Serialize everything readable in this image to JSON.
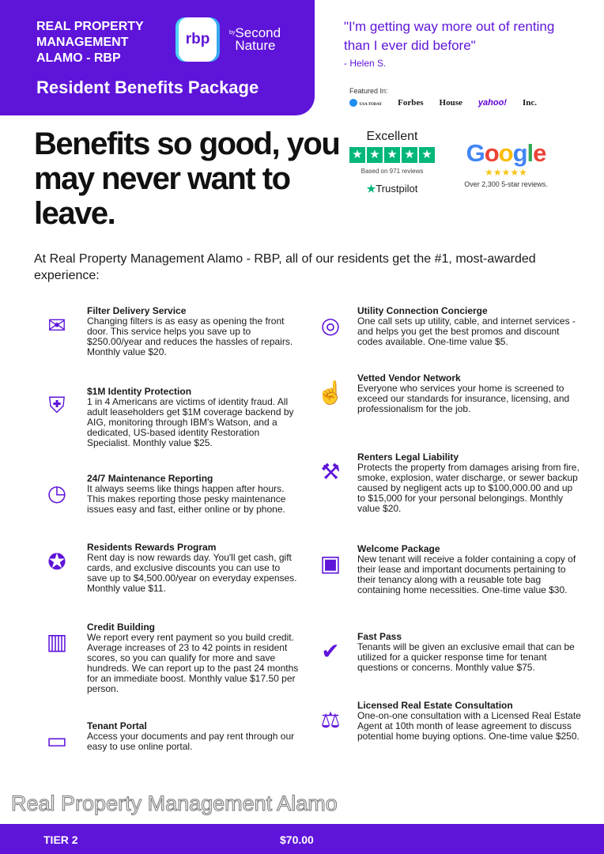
{
  "header": {
    "brand": "REAL PROPERTY MANAGEMENT ALAMO - RBP",
    "logo_text": "rbp",
    "logo_by": "by",
    "logo_sub": "Second Nature",
    "title": "Resident Benefits Package"
  },
  "quote": {
    "text": "\"I'm getting way more out of renting than I ever did before\"",
    "author": "- Helen S."
  },
  "featured": {
    "label": "Featured In:",
    "outlets": [
      "USA TODAY",
      "Forbes",
      "House",
      "yahoo!",
      "Inc."
    ]
  },
  "trustpilot": {
    "rating": "Excellent",
    "based": "Based on 971 reviews",
    "brand": "Trustpilot"
  },
  "google": {
    "brand": "Google",
    "stars": "★★★★★",
    "reviews": "Over 2,300 5-star reviews."
  },
  "headline": "Benefits so good, you may never want to leave.",
  "intro": "At Real Property Management Alamo - RBP, all of our residents get the #1, most-awarded experience:",
  "left": [
    {
      "title": "Filter Delivery Service",
      "body": "Changing filters is as easy as opening the front door. This service helps you save up to $250.00/year and reduces the hassles of repairs. Monthly value $20."
    },
    {
      "title": "$1M Identity Protection",
      "body": "1 in 4 Americans are victims of identity fraud. All adult leaseholders get $1M coverage backend by AIG, monitoring through IBM's Watson, and a dedicated, US-based identity Restoration Specialist. Monthly value $25."
    },
    {
      "title": "24/7 Maintenance Reporting",
      "body": "It always seems like things happen after hours. This makes reporting those pesky maintenance issues easy and fast, either online or by phone."
    },
    {
      "title": "Residents Rewards Program",
      "body": "Rent day is now rewards day. You'll get cash, gift cards, and exclusive discounts you can use to save up to $4,500.00/year on everyday expenses. Monthly value $11."
    },
    {
      "title": "Credit Building",
      "body": "We report every rent payment so you build credit. Average increases of 23 to 42 points in resident scores, so you can qualify for more and save hundreds. We can report up to the past 24 months for an immediate boost. Monthly value $17.50 per person."
    },
    {
      "title": "Tenant Portal",
      "body": "Access your documents and pay rent through our easy to use online portal."
    }
  ],
  "right": [
    {
      "title": "Utility Connection Concierge",
      "body": "One call sets up utility, cable, and internet services - and helps you get the best promos and discount codes available. One-time value $5."
    },
    {
      "title": "Vetted Vendor Network",
      "body": "Everyone who services your home is screened to exceed our standards for insurance, licensing, and professionalism for the job."
    },
    {
      "title": "Renters Legal Liability",
      "body": "Protects the property from damages arising from fire, smoke, explosion, water discharge, or sewer backup caused by negligent acts up to $100,000.00 and up to $15,000 for your personal belongings. Monthly value $20."
    },
    {
      "title": "Welcome Package",
      "body": "New tenant will receive a folder containing a copy of their lease and important documents pertaining to their tenancy along with a reusable tote bag containing home necessities. One-time value $30."
    },
    {
      "title": "Fast Pass",
      "body": "Tenants will be given an exclusive email that can be utilized for a quicker response time for tenant questions or concerns. Monthly value $75."
    },
    {
      "title": "Licensed Real Estate Consultation",
      "body": "One-on-one consultation with a Licensed Real Estate Agent at 10th month of lease agreement to discuss potential home buying options. One-time value $250."
    }
  ],
  "footer": {
    "tier": "TIER 2",
    "price": "$70.00"
  },
  "watermark": "Real Property Management Alamo",
  "colors": {
    "brand_purple": "#5e14d9",
    "trustpilot_green": "#00b67a"
  }
}
